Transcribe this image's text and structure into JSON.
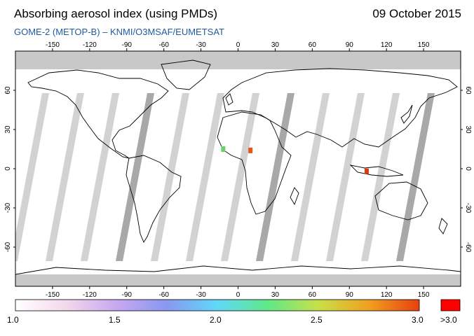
{
  "header": {
    "title": "Absorbing aerosol index (using PMDs)",
    "date": "09 October 2015",
    "subtitle": "GOME-2 (METOP-B)  –  KNMI/O3MSAF/EUMETSAT"
  },
  "map": {
    "lon_ticks": [
      "-150",
      "-120",
      "-90",
      "-60",
      "-30",
      "0",
      "30",
      "60",
      "90",
      "120",
      "150"
    ],
    "lon_values": [
      -150,
      -120,
      -90,
      -60,
      -30,
      0,
      30,
      60,
      90,
      120,
      150
    ],
    "lat_ticks": [
      "60",
      "30",
      "0",
      "-30",
      "-60"
    ],
    "lat_values": [
      60,
      30,
      0,
      -30,
      -60
    ],
    "colors": {
      "no_data": "#c8c8c8",
      "swath_gap": "#d2d2d2",
      "swath_dark": "#a8a8a8",
      "ocean": "#ffffff",
      "coast": "#000000"
    },
    "aerosol_hotspots": [
      {
        "name": "west-africa",
        "lon": 10,
        "lat": 14,
        "color": "#e8561c"
      },
      {
        "name": "borneo-indonesia",
        "lon": 104,
        "lat": -2,
        "color": "#d83c12"
      },
      {
        "name": "sahel-green",
        "lon": -12,
        "lat": 15,
        "color": "#6cd06c"
      }
    ]
  },
  "colorbar": {
    "labels": [
      "1.0",
      "1.5",
      "2.0",
      "2.5",
      "3.0"
    ],
    "overflow_label": ">3.0",
    "min": 1.0,
    "max": 3.0,
    "stops": [
      "#ffffff",
      "#f4d8ec",
      "#c8a8f0",
      "#8898f0",
      "#60d8f8",
      "#60e888",
      "#c8e048",
      "#f0a020",
      "#e84010"
    ],
    "overflow_color": "#ff0000"
  }
}
